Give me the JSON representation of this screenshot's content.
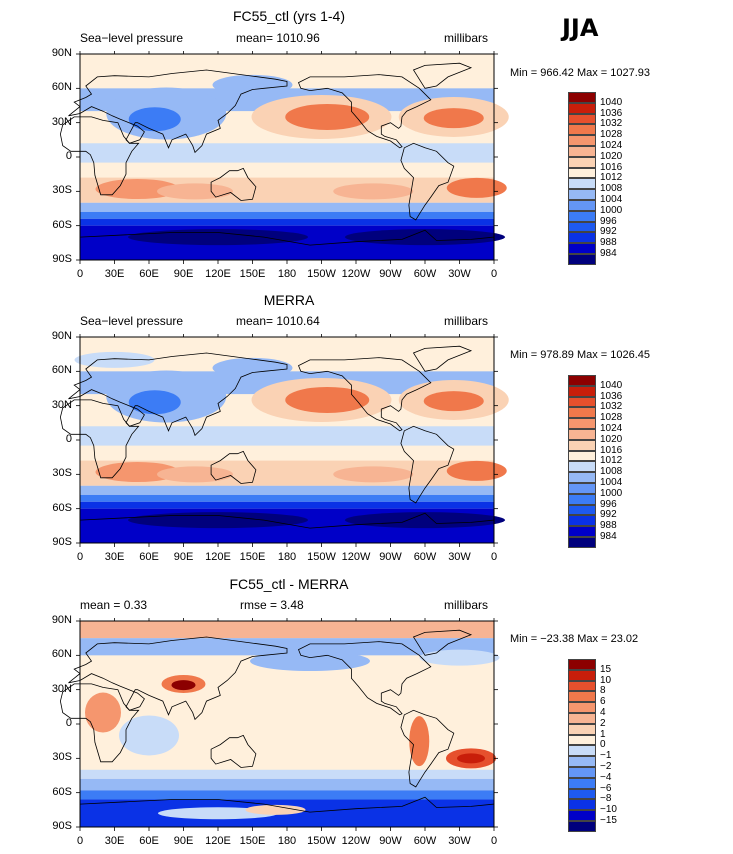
{
  "season": "JJA",
  "colors": {
    "pressure_scale": [
      "#00007d",
      "#0000c8",
      "#0a32e6",
      "#1e5af0",
      "#3c7cf5",
      "#6496f5",
      "#96b9f5",
      "#c8dcf8",
      "#fff0dc",
      "#fad2b4",
      "#f7b493",
      "#f5966e",
      "#f0784b",
      "#e6502d",
      "#c81e0a",
      "#8c0000"
    ],
    "diff_scale": [
      "#00007d",
      "#0000c8",
      "#0a32e6",
      "#1e5af0",
      "#3c7cf5",
      "#6496f5",
      "#96b9f5",
      "#c8dcf8",
      "#fff0dc",
      "#fad2b4",
      "#f7b493",
      "#f5966e",
      "#f0784b",
      "#e6502d",
      "#c81e0a",
      "#8c0000"
    ]
  },
  "axes": {
    "lat_labels": [
      "90N",
      "60N",
      "30N",
      "0",
      "30S",
      "60S",
      "90S"
    ],
    "lon_labels": [
      "0",
      "30E",
      "60E",
      "90E",
      "120E",
      "150E",
      "180",
      "150W",
      "120W",
      "90W",
      "60W",
      "30W",
      "0"
    ]
  },
  "panels": [
    {
      "title": "FC55_ctl (yrs 1-4)",
      "left_text": "Sea−level pressure",
      "center_text": "mean= 1010.96",
      "right_text": "millibars",
      "minmax": "Min = 966.42 Max = 1027.93",
      "legend_labels": [
        "1040",
        "1036",
        "1032",
        "1028",
        "1024",
        "1020",
        "1016",
        "1012",
        "1008",
        "1004",
        "1000",
        "996",
        "992",
        "988",
        "984"
      ]
    },
    {
      "title": "MERRA",
      "left_text": "Sea−level pressure",
      "center_text": "mean= 1010.64",
      "right_text": "millibars",
      "minmax": "Min = 978.89 Max = 1026.45",
      "legend_labels": [
        "1040",
        "1036",
        "1032",
        "1028",
        "1024",
        "1020",
        "1016",
        "1012",
        "1008",
        "1004",
        "1000",
        "996",
        "992",
        "988",
        "984"
      ]
    },
    {
      "title": "FC55_ctl - MERRA",
      "left_text": "mean =    0.33",
      "center_text": "rmse =    3.48",
      "right_text": "millibars",
      "minmax": "Min = −23.38 Max =  23.02",
      "legend_labels": [
        "15",
        "10",
        "8",
        "6",
        "4",
        "2",
        "1",
        "0",
        "−1",
        "−2",
        "−4",
        "−6",
        "−8",
        "−10",
        "−15"
      ]
    }
  ]
}
